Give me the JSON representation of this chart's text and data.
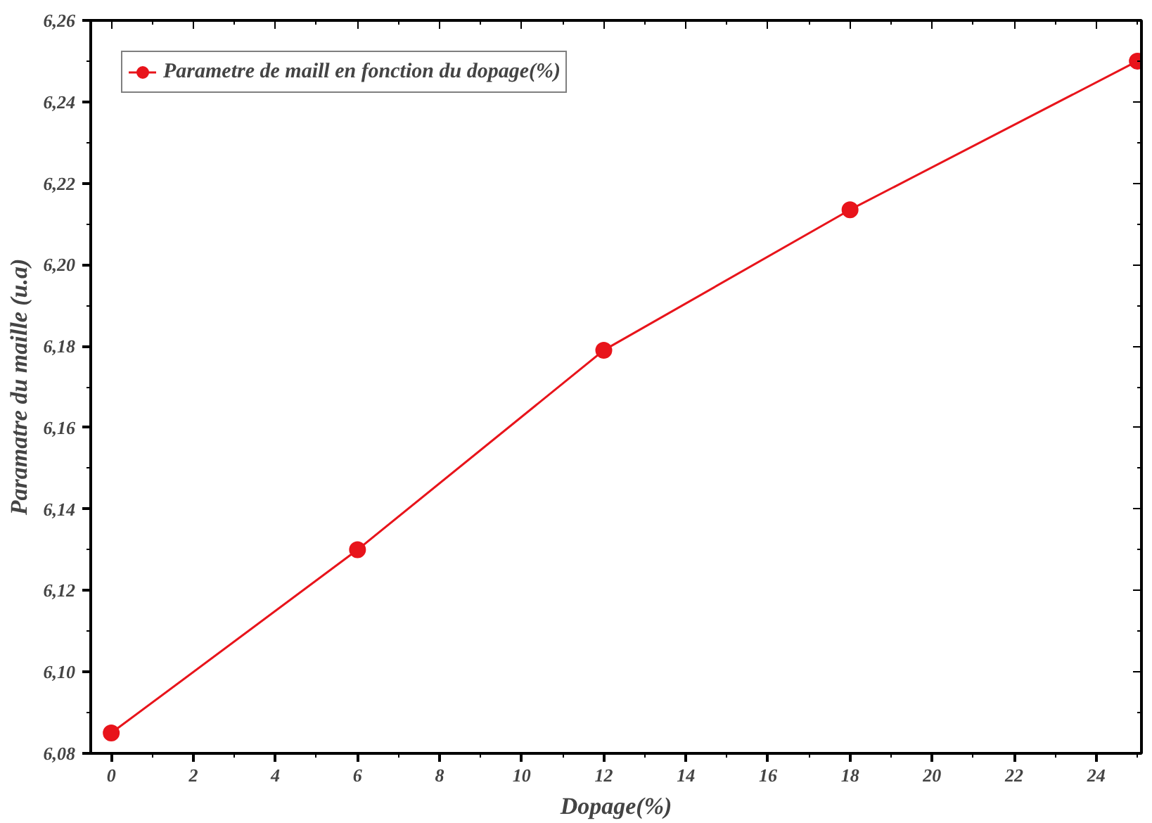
{
  "chart_data": {
    "type": "line",
    "xlabel": "Dopage(%)",
    "ylabel": "Paramatre du maille (u.a)",
    "x": [
      0,
      6,
      12,
      18,
      25
    ],
    "series": [
      {
        "name": "Parametre de maill en fonction du dopage(%)",
        "color": "#e8141b",
        "values": [
          6.085,
          6.13,
          6.179,
          6.2135,
          6.25
        ]
      }
    ],
    "xlim": [
      -0.5,
      25.1
    ],
    "ylim": [
      6.08,
      6.26
    ],
    "xticks": [
      0,
      2,
      4,
      6,
      8,
      10,
      12,
      14,
      16,
      18,
      20,
      22,
      24
    ],
    "yticks": [
      {
        "value": 6.08,
        "label": "6,08"
      },
      {
        "value": 6.1,
        "label": "6,10"
      },
      {
        "value": 6.12,
        "label": "6,12"
      },
      {
        "value": 6.14,
        "label": "6,14"
      },
      {
        "value": 6.16,
        "label": "6,16"
      },
      {
        "value": 6.18,
        "label": "6,18"
      },
      {
        "value": 6.2,
        "label": "6,20"
      },
      {
        "value": 6.22,
        "label": "6,22"
      },
      {
        "value": 6.24,
        "label": "6,24"
      },
      {
        "value": 6.26,
        "label": "6,26"
      }
    ],
    "grid": false,
    "legend": "top left",
    "marker": "circle",
    "line_style": "solid"
  }
}
